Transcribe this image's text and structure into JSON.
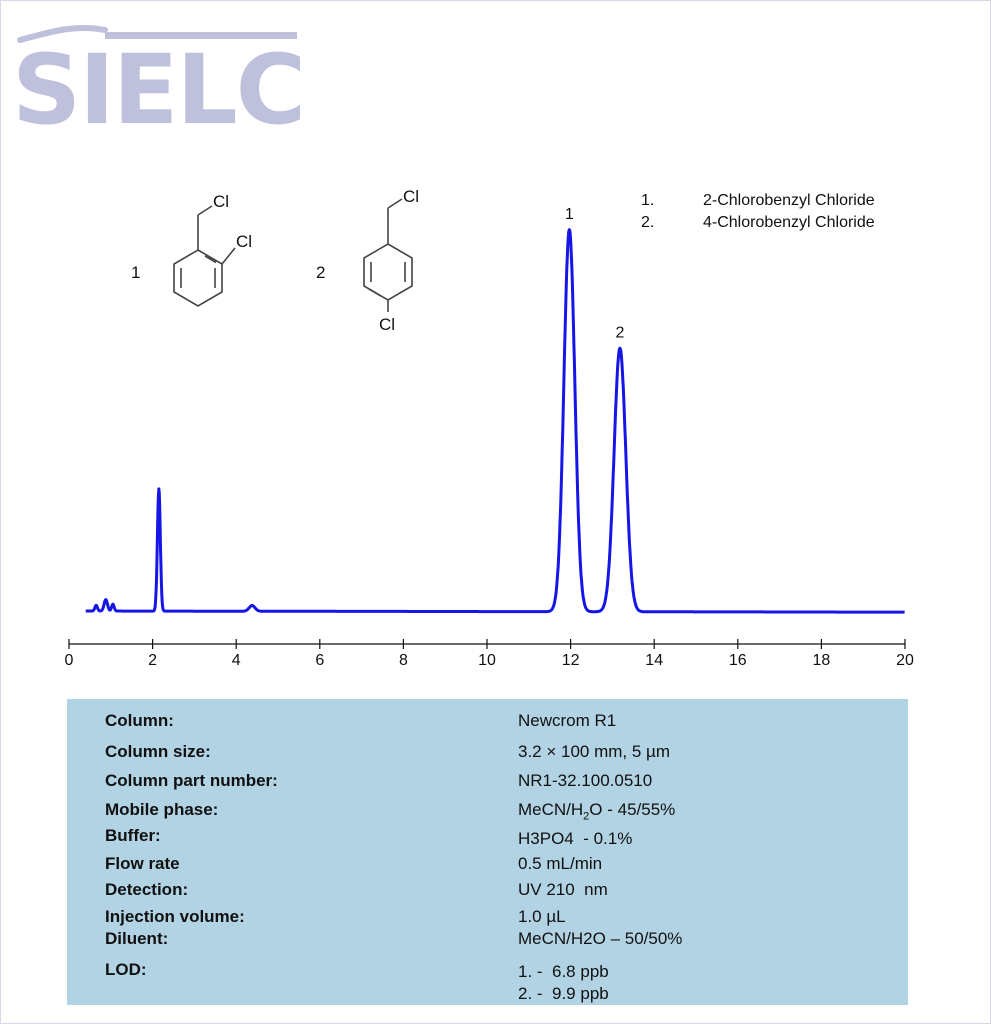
{
  "logo": {
    "text": "SIELC"
  },
  "chart_data": {
    "type": "line",
    "title": "",
    "xlabel": "",
    "ylabel": "",
    "xlim": [
      0,
      20
    ],
    "xticks": [
      0,
      2,
      4,
      6,
      8,
      10,
      12,
      14,
      16,
      18,
      20
    ],
    "grid": false,
    "series": [
      {
        "color": "#1515e6",
        "peaks": [
          {
            "rt": 0.65,
            "height": 0.015,
            "width": 0.03
          },
          {
            "rt": 0.88,
            "height": 0.03,
            "width": 0.04
          },
          {
            "rt": 1.05,
            "height": 0.018,
            "width": 0.03
          },
          {
            "rt": 2.15,
            "height": 0.32,
            "width": 0.035
          },
          {
            "rt": 4.38,
            "height": 0.015,
            "width": 0.07
          },
          {
            "rt": 11.97,
            "height": 1.0,
            "width": 0.13
          },
          {
            "rt": 13.18,
            "height": 0.69,
            "width": 0.14
          }
        ]
      }
    ],
    "peak_labels": [
      {
        "label": "1",
        "rt": 11.97,
        "height": 1.0
      },
      {
        "label": "2",
        "rt": 13.18,
        "height": 0.69
      }
    ],
    "legend": [
      {
        "num": "1.",
        "name": "2-Chlorobenzyl Chloride"
      },
      {
        "num": "2.",
        "name": "4-Chlorobenzyl Chloride"
      }
    ],
    "structures": [
      {
        "num": "1",
        "substituents": [
          "Cl",
          "Cl"
        ]
      },
      {
        "num": "2",
        "substituents": [
          "Cl",
          "Cl"
        ]
      }
    ]
  },
  "params": {
    "column": {
      "label": "Column:",
      "value": "Newcrom R1"
    },
    "size": {
      "label": "Column size:",
      "value": "3.2 × 100 mm, 5 µm"
    },
    "part": {
      "label": "Column part number:",
      "value": "NR1-32.100.0510"
    },
    "mobile": {
      "label": "Mobile phase:",
      "value_pre": "MeCN/H",
      "value_sub": "2",
      "value_post": "O - 45/55%"
    },
    "buffer": {
      "label": "Buffer:",
      "value": "H3PO4  - 0.1%"
    },
    "flow": {
      "label": "Flow rate",
      "value": "0.5 mL/min"
    },
    "detect": {
      "label": "Detection:",
      "value": "UV 210  nm"
    },
    "inj": {
      "label": "Injection volume:",
      "value": "1.0 µL"
    },
    "diluent": {
      "label": "Diluent:",
      "value": "MeCN/H2O – 50/50%"
    },
    "lod": {
      "label": "LOD:",
      "value1": "1. -  6.8 ppb",
      "value2": "2. -  9.9 ppb"
    }
  }
}
